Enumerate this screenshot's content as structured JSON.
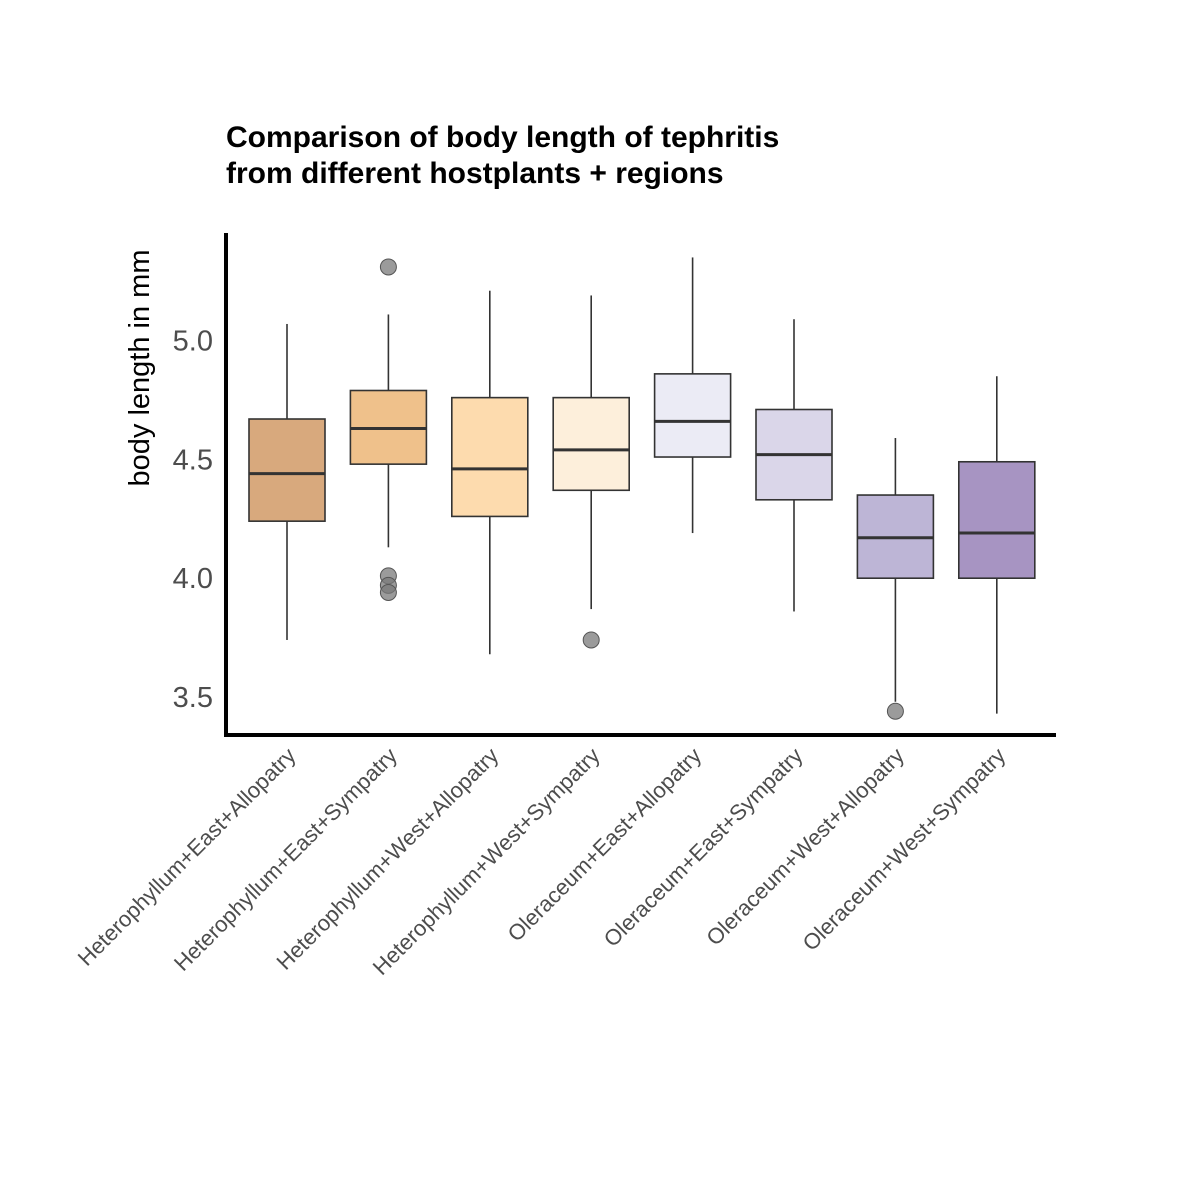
{
  "chart_data": {
    "type": "boxplot",
    "title_lines": [
      "Comparison of body length of tephritis",
      "from different hostplants + regions"
    ],
    "xlabel": "",
    "ylabel": "body length in mm",
    "ylim": [
      3.35,
      5.45
    ],
    "yticks": [
      3.5,
      4.0,
      4.5,
      5.0
    ],
    "ytick_labels": [
      "3.5",
      "4.0",
      "4.5",
      "5.0"
    ],
    "grid": false,
    "legend": "none",
    "categories": [
      "Heterophyllum+East+Allopatry",
      "Heterophyllum+East+Sympatry",
      "Heterophyllum+West+Allopatry",
      "Heterophyllum+West+Sympatry",
      "Oleraceum+East+Allopatry",
      "Oleraceum+East+Sympatry",
      "Oleraceum+West+Allopatry",
      "Oleraceum+West+Sympatry"
    ],
    "boxes": [
      {
        "whisker_low": 3.74,
        "q1": 4.24,
        "median": 4.44,
        "q3": 4.67,
        "whisker_high": 5.07,
        "outliers": [],
        "color": "#d8a97d"
      },
      {
        "whisker_low": 4.13,
        "q1": 4.48,
        "median": 4.63,
        "q3": 4.79,
        "whisker_high": 5.11,
        "outliers": [
          5.31,
          4.01,
          3.97,
          3.94
        ],
        "color": "#efc18b"
      },
      {
        "whisker_low": 3.68,
        "q1": 4.26,
        "median": 4.46,
        "q3": 4.76,
        "whisker_high": 5.21,
        "outliers": [],
        "color": "#fddbae"
      },
      {
        "whisker_low": 3.87,
        "q1": 4.37,
        "median": 4.54,
        "q3": 4.76,
        "whisker_high": 5.19,
        "outliers": [
          3.74
        ],
        "color": "#fdefdb"
      },
      {
        "whisker_low": 4.19,
        "q1": 4.51,
        "median": 4.66,
        "q3": 4.86,
        "whisker_high": 5.35,
        "outliers": [],
        "color": "#ebebf5"
      },
      {
        "whisker_low": 3.86,
        "q1": 4.33,
        "median": 4.52,
        "q3": 4.71,
        "whisker_high": 5.09,
        "outliers": [],
        "color": "#dad6e9"
      },
      {
        "whisker_low": 3.48,
        "q1": 4.0,
        "median": 4.17,
        "q3": 4.35,
        "whisker_high": 4.59,
        "outliers": [
          3.44
        ],
        "color": "#bdb5d6"
      },
      {
        "whisker_low": 3.43,
        "q1": 4.0,
        "median": 4.19,
        "q3": 4.49,
        "whisker_high": 4.85,
        "outliers": [],
        "color": "#a794c2"
      }
    ]
  }
}
